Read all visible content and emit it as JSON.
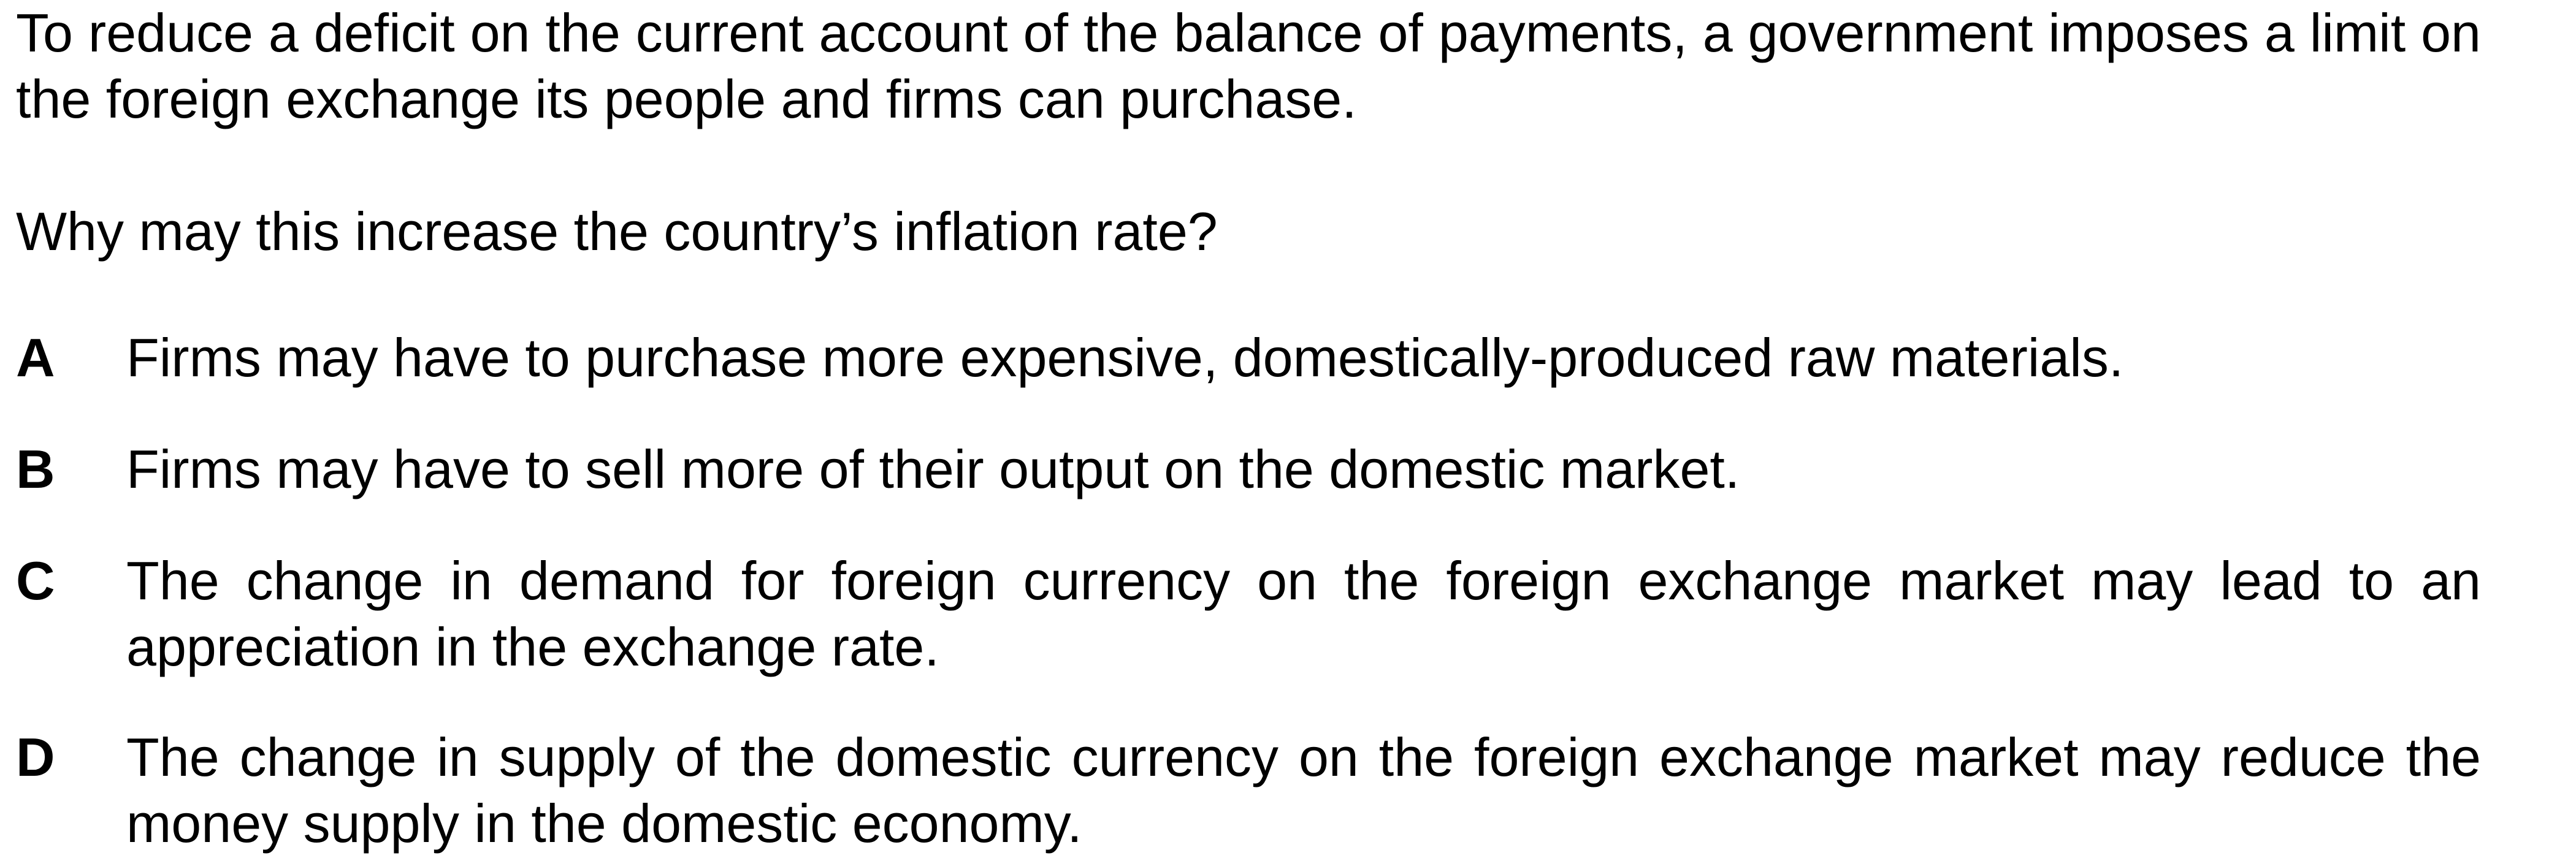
{
  "question": {
    "stem": "To reduce a deficit on the current account of the balance of payments, a government imposes a limit on the foreign exchange its people and firms can purchase.",
    "prompt": "Why may this increase the country’s inflation rate?",
    "options": [
      {
        "letter": "A",
        "text": "Firms may have to purchase more expensive, domestically-produced raw materials."
      },
      {
        "letter": "B",
        "text": "Firms may have to sell more of their output on the domestic market."
      },
      {
        "letter": "C",
        "text": "The change in demand for foreign currency on the foreign exchange market may lead to an appreciation in the exchange rate."
      },
      {
        "letter": "D",
        "text": "The change in supply of the domestic currency on the foreign exchange market may reduce the money supply in the domestic economy."
      }
    ]
  }
}
